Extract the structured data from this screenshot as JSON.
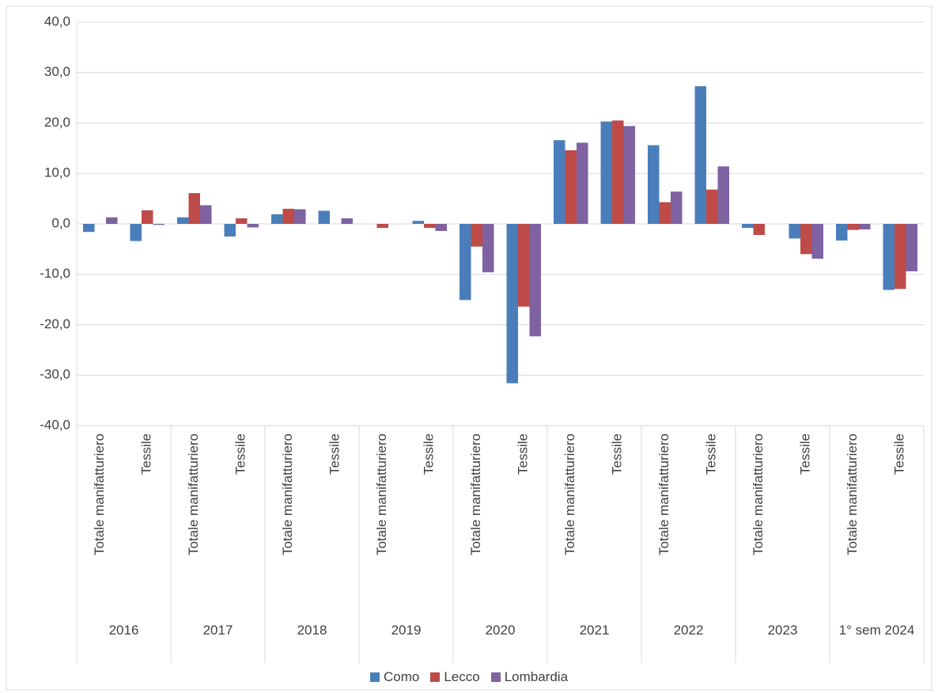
{
  "chart_data": {
    "type": "bar",
    "categories": [
      "Totale manifatturiero",
      "Tessile",
      "Totale manifatturiero",
      "Tessile",
      "Totale manifatturiero",
      "Tessile",
      "Totale manifatturiero",
      "Tessile",
      "Totale manifatturiero",
      "Tessile",
      "Totale manifatturiero",
      "Tessile",
      "Totale manifatturiero",
      "Tessile",
      "Totale manifatturiero",
      "Tessile",
      "Totale manifatturiero",
      "Tessile"
    ],
    "groups": [
      "2016",
      "2017",
      "2018",
      "2019",
      "2020",
      "2021",
      "2022",
      "2023",
      "1° sem 2024"
    ],
    "series": [
      {
        "name": "Como",
        "color": "#4a7ebb",
        "values": [
          -1.6,
          -3.4,
          1.3,
          -2.5,
          1.9,
          2.6,
          0,
          0.6,
          -15.1,
          -31.6,
          16.6,
          20.3,
          15.6,
          27.3,
          -0.8,
          -2.9,
          -3.3,
          -13.1
        ]
      },
      {
        "name": "Lecco",
        "color": "#be4b48",
        "values": [
          0,
          2.7,
          6.1,
          1.1,
          3.0,
          0,
          -0.8,
          -0.8,
          -4.5,
          -16.4,
          14.6,
          20.5,
          4.3,
          6.8,
          -2.2,
          -6.0,
          -1.2,
          -12.9
        ]
      },
      {
        "name": "Lombardia",
        "color": "#7e62a1",
        "values": [
          1.3,
          -0.2,
          3.7,
          -0.7,
          2.9,
          1.1,
          0,
          -1.4,
          -9.6,
          -22.3,
          16.1,
          19.4,
          6.4,
          11.4,
          0,
          -6.9,
          -1.1,
          -9.4
        ]
      }
    ],
    "ylim": [
      -40,
      40
    ],
    "yticks": [
      {
        "value": -40,
        "label": "-40,0"
      },
      {
        "value": -30,
        "label": "-30,0"
      },
      {
        "value": -20,
        "label": "-20,0"
      },
      {
        "value": -10,
        "label": "-10,0"
      },
      {
        "value": 0,
        "label": "0,0"
      },
      {
        "value": 10,
        "label": "10,0"
      },
      {
        "value": 20,
        "label": "20,0"
      },
      {
        "value": 30,
        "label": "30,0"
      },
      {
        "value": 40,
        "label": "40,0"
      }
    ],
    "grid": true
  }
}
